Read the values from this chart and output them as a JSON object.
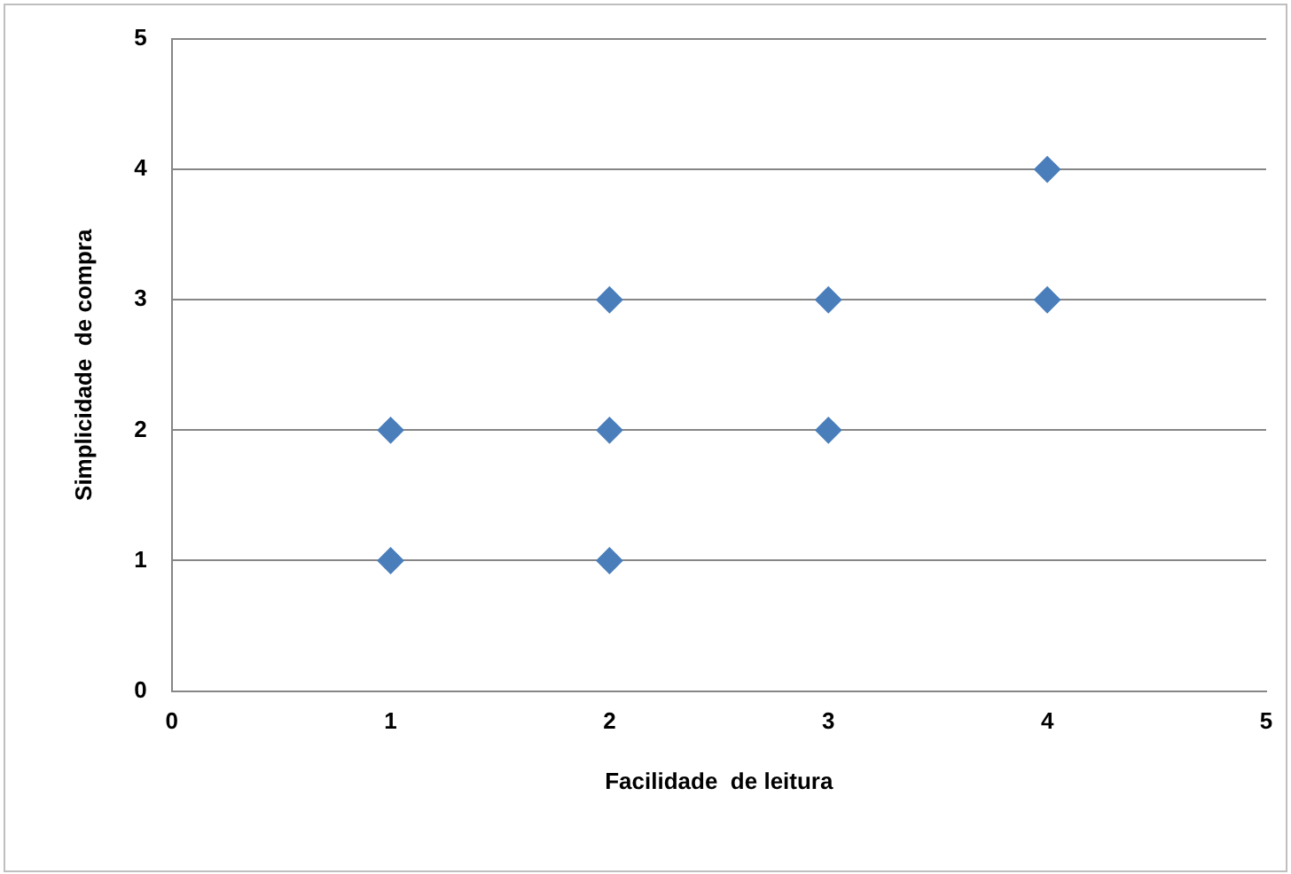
{
  "chart_data": {
    "type": "scatter",
    "xlabel": "Facilidade  de leitura",
    "ylabel": "Simplicidade  de compra",
    "x": [
      1,
      1,
      2,
      2,
      2,
      3,
      3,
      4,
      4
    ],
    "series": [
      {
        "color": "#4a7ebb",
        "values": [
          1,
          2,
          1,
          2,
          3,
          2,
          3,
          3,
          4
        ]
      }
    ],
    "xlim": [
      0,
      5
    ],
    "ylim": [
      0,
      5
    ],
    "xticks": [
      0,
      1,
      2,
      3,
      4,
      5
    ],
    "yticks": [
      0,
      1,
      2,
      3,
      4,
      5
    ],
    "grid": "y",
    "marker": "diamond",
    "legend": false
  }
}
